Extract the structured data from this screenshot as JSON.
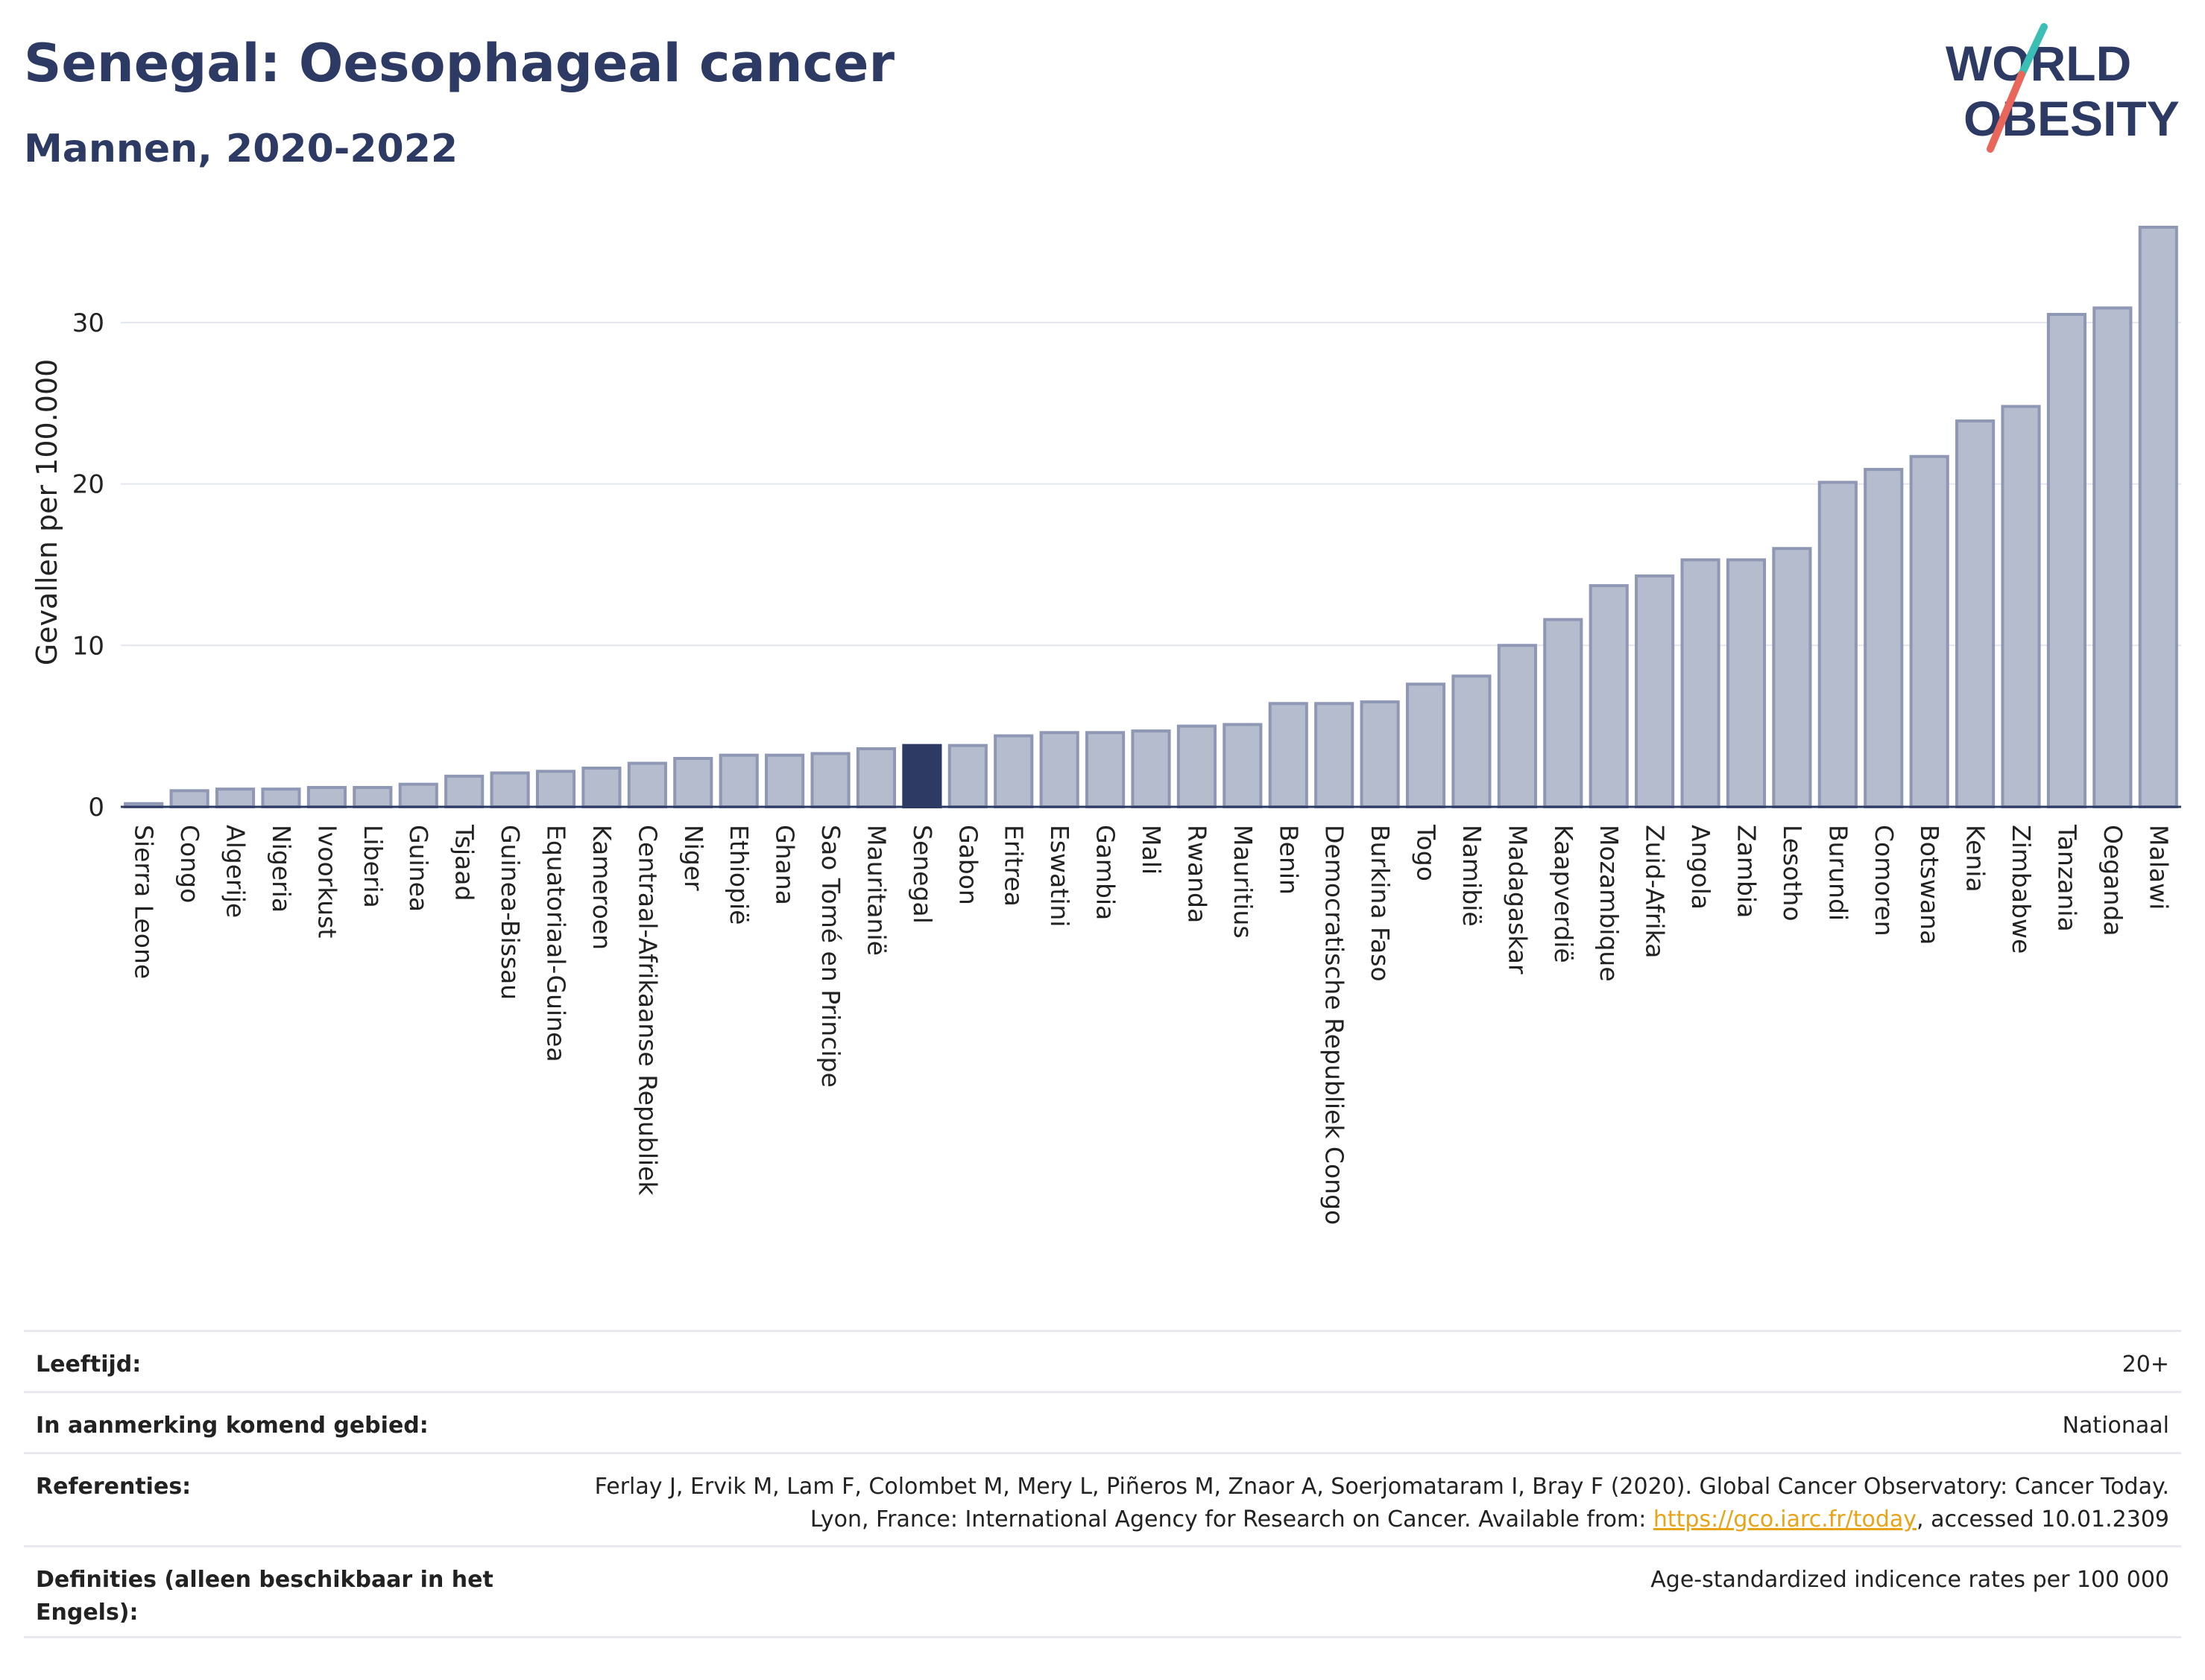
{
  "header": {
    "title": "Senegal: Oesophageal cancer",
    "subtitle": "Mannen, 2020-2022"
  },
  "logo": {
    "line1": "WORLD",
    "line2": "OBESITY",
    "slash_color_top": "#3bbfb5",
    "slash_color_bottom": "#e8675a"
  },
  "colors": {
    "bar": "#b5bccd",
    "bar_stroke": "#8e97b3",
    "highlight": "#2c3a64",
    "grid": "#e3e6ee",
    "axis": "#2c3a64"
  },
  "chart_data": {
    "type": "bar",
    "ylabel": "Gevallen per 100.000",
    "ylim": [
      0,
      36.5
    ],
    "yticks": [
      0,
      10,
      20,
      30
    ],
    "highlight": "Senegal",
    "categories": [
      "Sierra Leone",
      "Congo",
      "Algerije",
      "Nigeria",
      "Ivoorkust",
      "Liberia",
      "Guinea",
      "Tsjaad",
      "Guinea-Bissau",
      "Equatoriaal-Guinea",
      "Kameroen",
      "Centraal-Afrikaanse Republiek",
      "Niger",
      "Ethiopië",
      "Ghana",
      "Sao Tomé en Principe",
      "Mauritanië",
      "Senegal",
      "Gabon",
      "Eritrea",
      "Eswatini",
      "Gambia",
      "Mali",
      "Rwanda",
      "Mauritius",
      "Benin",
      "Democratische Republiek Congo",
      "Burkina Faso",
      "Togo",
      "Namibië",
      "Madagaskar",
      "Kaapverdië",
      "Mozambique",
      "Zuid-Afrika",
      "Angola",
      "Zambia",
      "Lesotho",
      "Burundi",
      "Comoren",
      "Botswana",
      "Kenia",
      "Zimbabwe",
      "Tanzania",
      "Oeganda",
      "Malawi"
    ],
    "values": [
      0.2,
      1.0,
      1.1,
      1.1,
      1.2,
      1.2,
      1.4,
      1.9,
      2.1,
      2.2,
      2.4,
      2.7,
      3.0,
      3.2,
      3.2,
      3.3,
      3.6,
      3.8,
      3.8,
      4.4,
      4.6,
      4.6,
      4.7,
      5.0,
      5.1,
      6.4,
      6.4,
      6.5,
      7.6,
      8.1,
      10.0,
      11.6,
      13.7,
      14.3,
      15.3,
      15.3,
      16.0,
      20.1,
      20.9,
      21.7,
      23.9,
      24.8,
      30.5,
      30.9,
      35.9
    ]
  },
  "info": {
    "age_label": "Leeftijd:",
    "age_value": "20+",
    "area_label": "In aanmerking komend gebied:",
    "area_value": "Nationaal",
    "ref_label": "Referenties:",
    "ref_text_1": "Ferlay J, Ervik M, Lam F, Colombet M, Mery L, Piñeros M, Znaor A, Soerjomataram I, Bray F (2020). Global Cancer Observatory: Cancer Today. Lyon, France: International Agency for Research on Cancer. Available from: ",
    "ref_link": "https://gco.iarc.fr/today",
    "ref_text_2": ", accessed 10.01.2309",
    "def_label": "Definities (alleen beschikbaar in het Engels):",
    "def_value": "Age-standardized indicence rates per 100 000"
  }
}
